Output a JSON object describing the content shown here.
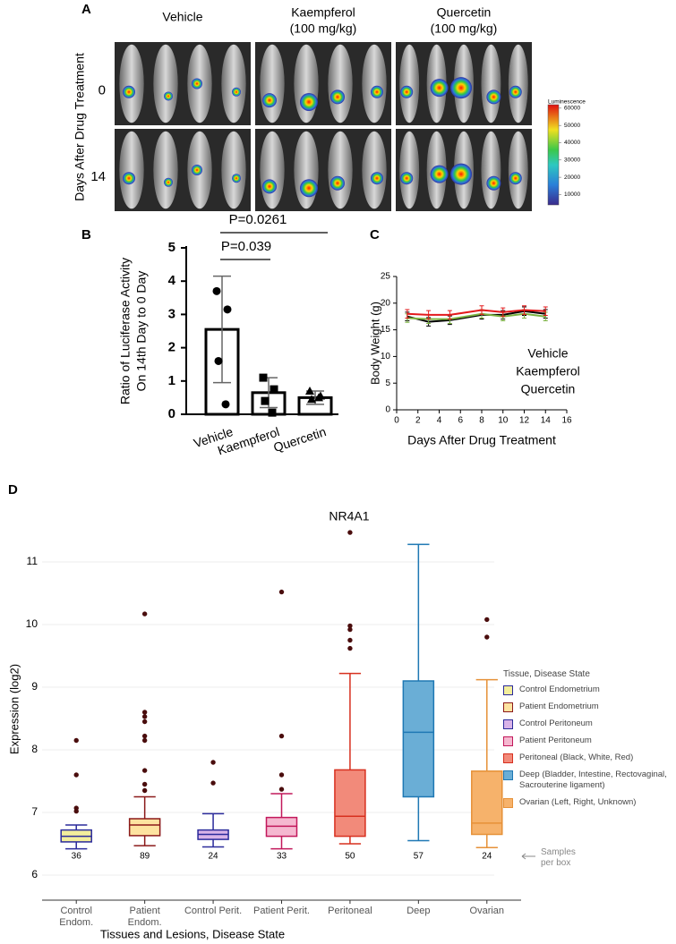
{
  "panel_a": {
    "label": "A",
    "columns": [
      {
        "name": "Vehicle"
      },
      {
        "name": "Kaempferol",
        "dose": "(100 mg/kg)",
        "color": "#2ca02c"
      },
      {
        "name": "Quercetin",
        "dose": "(100 mg/kg)",
        "color": "#e31a1c"
      }
    ],
    "rows": [
      "0",
      "14"
    ],
    "row_title": "Days After Drug Treatment",
    "colorbar": {
      "title": "Luminescence",
      "lim": [
        4000,
        62000
      ],
      "ticks": [
        10000,
        20000,
        30000,
        40000,
        50000,
        60000
      ]
    }
  },
  "chart_data": [
    {
      "panel": "B",
      "type": "bar",
      "y_label": [
        "Ratio of Luciferase Activity",
        "On 14th Day to 0 Day"
      ],
      "categories": [
        "Vehicle",
        "Kaempferol",
        "Quercetin"
      ],
      "category_colors": [
        "#000000",
        "#2ca02c",
        "#e31a1c"
      ],
      "values": [
        2.55,
        0.65,
        0.5
      ],
      "errors": [
        1.6,
        0.45,
        0.2
      ],
      "points": [
        [
          3.7,
          3.15,
          1.6,
          0.3
        ],
        [
          1.1,
          0.75,
          0.4,
          0.05
        ],
        [
          0.7,
          0.55,
          0.45,
          0.5
        ]
      ],
      "markers": [
        "circle",
        "square",
        "triangle"
      ],
      "ylim": [
        0,
        5
      ],
      "yticks": [
        0,
        1,
        2,
        3,
        4,
        5
      ],
      "annotations": [
        "P=0.0261",
        "P=0.039"
      ]
    },
    {
      "panel": "C",
      "type": "line",
      "x_label": "Days After Drug Treatment",
      "y_label": "Body Weight (g)",
      "x": [
        1,
        3,
        5,
        8,
        10,
        12,
        14
      ],
      "series": [
        {
          "name": "Vehicle",
          "color": "#000000",
          "values": [
            17.5,
            16.5,
            16.8,
            17.8,
            17.8,
            18.5,
            18
          ],
          "errors": [
            0.8,
            0.8,
            0.8,
            0.8,
            0.8,
            0.8,
            0.8
          ]
        },
        {
          "name": "Kaempferol",
          "color": "#7cb342",
          "values": [
            17.2,
            17,
            17,
            18,
            17.5,
            18,
            17.5
          ],
          "errors": [
            0.8,
            0.8,
            0.8,
            0.8,
            0.8,
            0.8,
            0.8
          ]
        },
        {
          "name": "Quercetin",
          "color": "#e31a1c",
          "values": [
            18,
            17.8,
            17.8,
            18.7,
            18.3,
            18.7,
            18.5
          ],
          "errors": [
            0.8,
            0.8,
            0.8,
            0.8,
            0.8,
            0.8,
            0.8
          ]
        }
      ],
      "legend_colors": [
        "#000000",
        "#2ca02c",
        "#e31a1c"
      ],
      "xlim": [
        0,
        16
      ],
      "xticks": [
        0,
        2,
        4,
        6,
        8,
        10,
        12,
        14,
        16
      ],
      "ylim": [
        0,
        25
      ],
      "yticks": [
        0,
        5,
        10,
        15,
        20,
        25
      ]
    },
    {
      "panel": "D",
      "type": "box",
      "title": "NR4A1",
      "x_label": "Tissues and Lesions, Disease State",
      "y_label": "Expression (log2)",
      "legend_title": "Tissue, Disease State",
      "count_note": "Samples per box",
      "categories": [
        "Control Endom.",
        "Patient Endom.",
        "Control Perit.",
        "Patient Perit.",
        "Peritoneal",
        "Deep",
        "Ovarian"
      ],
      "series": [
        {
          "name": "Control Endometrium",
          "color": "#2b2b9b",
          "fill": "#f3ee9c",
          "low": 6.42,
          "q1": 6.53,
          "median": 6.62,
          "q3": 6.72,
          "high": 6.8,
          "outliers": [
            8.15,
            7.6,
            7.07,
            7.02
          ],
          "count": 36
        },
        {
          "name": "Patient Endometrium",
          "color": "#8b1a1a",
          "fill": "#fde3a0",
          "low": 6.47,
          "q1": 6.63,
          "median": 6.8,
          "q3": 6.9,
          "high": 7.25,
          "outliers": [
            10.17,
            8.6,
            8.53,
            8.45,
            8.22,
            8.15,
            7.67,
            7.45,
            7.35
          ],
          "count": 89
        },
        {
          "name": "Control Peritoneum",
          "color": "#2b2b9b",
          "fill": "#d9b3e8",
          "low": 6.45,
          "q1": 6.57,
          "median": 6.65,
          "q3": 6.72,
          "high": 6.98,
          "outliers": [
            7.8,
            7.47
          ],
          "count": 24
        },
        {
          "name": "Patient Peritoneum",
          "color": "#c2185b",
          "fill": "#f5b8d0",
          "low": 6.42,
          "q1": 6.62,
          "median": 6.78,
          "q3": 6.92,
          "high": 7.3,
          "outliers": [
            10.52,
            8.22,
            7.6,
            7.37
          ],
          "count": 33
        },
        {
          "name": "Peritoneal (Black, White, Red)",
          "color": "#d7301f",
          "fill": "#f28a7a",
          "low": 6.5,
          "q1": 6.62,
          "median": 6.94,
          "q3": 7.68,
          "high": 9.22,
          "outliers": [
            11.47,
            9.98,
            9.92,
            9.75,
            9.62
          ],
          "count": 50
        },
        {
          "name": "Deep (Bladder, Intestine, Rectovaginal, Sacrouterine ligament)",
          "color": "#1f78b4",
          "fill": "#6aaed6",
          "low": 6.55,
          "q1": 7.25,
          "median": 8.28,
          "q3": 9.1,
          "high": 11.28,
          "outliers": [],
          "count": 57
        },
        {
          "name": "Ovarian (Left, Right, Unknown)",
          "color": "#e69138",
          "fill": "#f6b26b",
          "low": 6.44,
          "q1": 6.65,
          "median": 6.83,
          "q3": 7.66,
          "high": 9.12,
          "outliers": [
            10.08,
            9.8
          ],
          "count": 24
        }
      ],
      "ylim": [
        5.6,
        11.7
      ],
      "yticks": [
        6,
        7,
        8,
        9,
        10,
        11
      ],
      "grid": true
    }
  ]
}
